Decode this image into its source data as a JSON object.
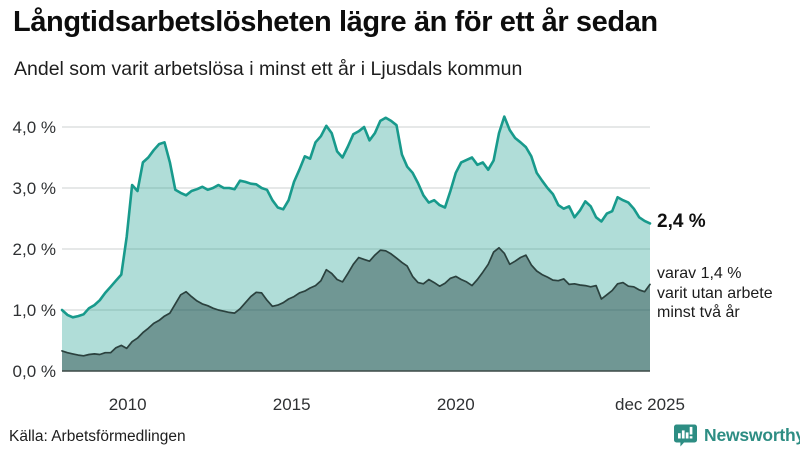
{
  "header": {
    "title": "Långtidsarbetslösheten lägre än för ett år sedan",
    "subtitle": "Andel som varit arbetslösa i minst ett år i Ljusdals kommun"
  },
  "annotations": {
    "primary_value": "2,4 %",
    "secondary_lines": [
      "varav 1,4 %",
      "varit utan arbete",
      "minst två år"
    ]
  },
  "source_label": "Källa: Arbetsförmedlingen",
  "logo": {
    "text": "Newsworthy",
    "icon": "newsworthy-speech-bubble-bars-icon"
  },
  "colors": {
    "accent_teal": "#189a8c",
    "light_area_fill": "rgba(24,154,140,0.34)",
    "dark_area_fill": "rgba(23,56,54,0.42)",
    "dark_line": "#2b413e",
    "baseline": "#3e4b48",
    "gridline": "#d8dbda",
    "axis_text": "#2f3133",
    "logo_teal": "#2d8d83"
  },
  "chart_data": {
    "type": "area",
    "title": "Långtidsarbetslösheten lägre än för ett år sedan",
    "subtitle": "Andel som varit arbetslösa i minst ett år i Ljusdals kommun",
    "grid": true,
    "legend_position": "none",
    "x_domain": [
      2008,
      2025.92
    ],
    "y_domain": [
      0,
      4.35
    ],
    "y_ticks": [
      {
        "label": "0,0 %",
        "value": 0
      },
      {
        "label": "1,0 %",
        "value": 1
      },
      {
        "label": "2,0 %",
        "value": 2
      },
      {
        "label": "3,0 %",
        "value": 3
      },
      {
        "label": "4,0 %",
        "value": 4
      }
    ],
    "x_ticks": [
      {
        "label": "2010",
        "year": 2010
      },
      {
        "label": "2015",
        "year": 2015
      },
      {
        "label": "2020",
        "year": 2020
      },
      {
        "label": "dec 2025",
        "year": 2025.92
      }
    ],
    "unit": "%",
    "series": [
      {
        "id": "unemployed-at-least-one-year",
        "end_label": "2,4 %",
        "end_value": 2.4,
        "line_color": "#189a8c",
        "line_width": 2.6,
        "fill": "rgba(24,154,140,0.34)",
        "values": [
          1.0,
          0.92,
          0.88,
          0.9,
          0.93,
          1.03,
          1.08,
          1.16,
          1.28,
          1.38,
          1.48,
          1.58,
          2.2,
          3.05,
          2.95,
          3.42,
          3.5,
          3.62,
          3.72,
          3.75,
          3.42,
          2.97,
          2.92,
          2.88,
          2.95,
          2.98,
          3.02,
          2.97,
          3.0,
          3.05,
          3.0,
          3.0,
          2.98,
          3.12,
          3.1,
          3.07,
          3.06,
          3.0,
          2.97,
          2.8,
          2.68,
          2.65,
          2.8,
          3.1,
          3.3,
          3.52,
          3.48,
          3.75,
          3.85,
          4.02,
          3.9,
          3.6,
          3.5,
          3.68,
          3.88,
          3.93,
          4.0,
          3.78,
          3.9,
          4.1,
          4.15,
          4.1,
          4.03,
          3.55,
          3.35,
          3.25,
          3.08,
          2.88,
          2.76,
          2.8,
          2.72,
          2.68,
          2.95,
          3.25,
          3.42,
          3.46,
          3.5,
          3.38,
          3.42,
          3.3,
          3.45,
          3.9,
          4.17,
          3.95,
          3.82,
          3.75,
          3.67,
          3.52,
          3.25,
          3.12,
          3.0,
          2.9,
          2.72,
          2.66,
          2.7,
          2.52,
          2.63,
          2.78,
          2.7,
          2.52,
          2.45,
          2.58,
          2.62,
          2.85,
          2.8,
          2.76,
          2.66,
          2.52,
          2.46,
          2.42
        ]
      },
      {
        "id": "unemployed-at-least-two-years",
        "end_label": "varav 1,4 % varit utan arbete minst två år",
        "end_value": 1.4,
        "line_color": "#2b413e",
        "line_width": 1.7,
        "fill": "rgba(23,56,54,0.42)",
        "values": [
          0.33,
          0.3,
          0.28,
          0.26,
          0.25,
          0.27,
          0.28,
          0.27,
          0.3,
          0.3,
          0.38,
          0.42,
          0.37,
          0.48,
          0.54,
          0.63,
          0.7,
          0.78,
          0.83,
          0.9,
          0.95,
          1.1,
          1.25,
          1.3,
          1.22,
          1.15,
          1.1,
          1.07,
          1.03,
          1.0,
          0.98,
          0.96,
          0.95,
          1.02,
          1.12,
          1.22,
          1.29,
          1.28,
          1.16,
          1.06,
          1.08,
          1.12,
          1.18,
          1.22,
          1.28,
          1.31,
          1.36,
          1.4,
          1.48,
          1.66,
          1.6,
          1.5,
          1.46,
          1.6,
          1.75,
          1.86,
          1.83,
          1.8,
          1.9,
          1.98,
          1.97,
          1.92,
          1.85,
          1.78,
          1.72,
          1.55,
          1.45,
          1.43,
          1.5,
          1.45,
          1.39,
          1.44,
          1.52,
          1.55,
          1.5,
          1.46,
          1.4,
          1.5,
          1.62,
          1.75,
          1.95,
          2.02,
          1.93,
          1.75,
          1.8,
          1.86,
          1.9,
          1.74,
          1.64,
          1.58,
          1.54,
          1.49,
          1.48,
          1.51,
          1.42,
          1.43,
          1.41,
          1.4,
          1.38,
          1.4,
          1.18,
          1.25,
          1.32,
          1.43,
          1.45,
          1.39,
          1.38,
          1.33,
          1.3,
          1.42
        ]
      }
    ]
  }
}
